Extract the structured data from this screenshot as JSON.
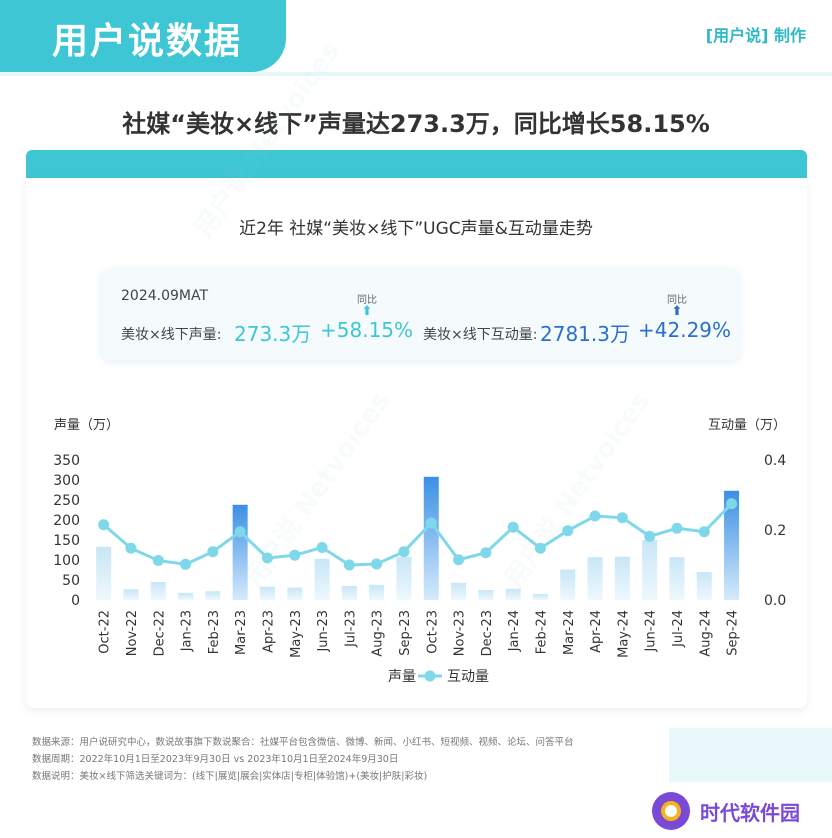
{
  "brand": {
    "title": "用户说数据",
    "maker": "[用户说] 制作"
  },
  "headline": "社媒“美妆×线下”声量达273.3万，同比增长58.15%",
  "kpi": {
    "period": "2024.09MAT",
    "yoy_label": "同比",
    "volume": {
      "label": "美妆×线下声量:",
      "value": "273.3万",
      "growth": "+58.15%"
    },
    "interaction": {
      "label": "美妆×线下互动量:",
      "value": "2781.3万",
      "growth": "+42.29%"
    }
  },
  "colors": {
    "teal": "#3ec6d4",
    "bar_light": "#c8e6f7",
    "bar_dark": "#3a8fe4",
    "line": "#7fd8e9",
    "blue": "#2a6fcb"
  },
  "footer": {
    "source": "数据来源：用户说研究中心，数说故事旗下数说聚合：社媒平台包含微信、微博、新闻、小红书、短视频、视频、论坛、问答平台",
    "period": "数据周期：2022年10月1日至2023年9月30日 vs 2023年10月1日至2024年9月30日",
    "note": "数据说明：美妆×线下筛选关键词为：(线下|展览|展会|实体店|专柜|体验馆)+(美妆|护肤|彩妆)"
  },
  "logo": {
    "text": "时代软件园"
  },
  "chart_data": {
    "type": "bar",
    "title": "近2年 社媒“美妆×线下”UGC声量&互动量走势",
    "categories": [
      "Oct-22",
      "Nov-22",
      "Dec-22",
      "Jan-23",
      "Feb-23",
      "Mar-23",
      "Apr-23",
      "May-23",
      "Jun-23",
      "Jul-23",
      "Aug-23",
      "Sep-23",
      "Oct-23",
      "Nov-23",
      "Dec-23",
      "Jan-24",
      "Feb-24",
      "Mar-24",
      "Apr-24",
      "May-24",
      "Jun-24",
      "Jul-24",
      "Aug-24",
      "Sep-24"
    ],
    "ylabel": "声量（万）",
    "y2label": "互动量（万）",
    "ylim": [
      0,
      350
    ],
    "yticks": [
      "0",
      "50",
      "100",
      "150",
      "200",
      "250",
      "300",
      "350"
    ],
    "y2lim": [
      0,
      0.4
    ],
    "y2ticks": [
      "0.0",
      "0.2",
      "0.4"
    ],
    "legend_position": "bottom",
    "series": [
      {
        "name": "声量",
        "type": "bar",
        "axis": "left",
        "values": [
          133,
          27,
          45,
          18,
          22,
          238,
          33,
          31,
          103,
          35,
          38,
          107,
          308,
          43,
          25,
          28,
          15,
          76,
          107,
          108,
          150,
          107,
          70,
          273
        ],
        "highlight": [
          5,
          12,
          23
        ]
      },
      {
        "name": "互动量",
        "type": "line",
        "axis": "right",
        "values": [
          0.215,
          0.148,
          0.113,
          0.102,
          0.138,
          0.195,
          0.12,
          0.128,
          0.15,
          0.1,
          0.103,
          0.138,
          0.22,
          0.115,
          0.135,
          0.208,
          0.148,
          0.198,
          0.24,
          0.235,
          0.182,
          0.205,
          0.195,
          0.275
        ]
      }
    ]
  }
}
